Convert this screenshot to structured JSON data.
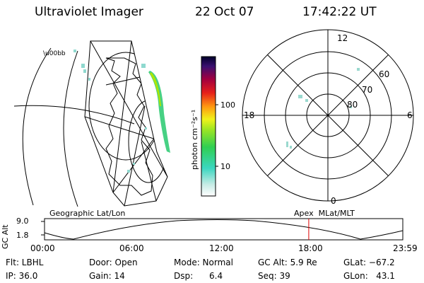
{
  "header": {
    "instrument": "Ultraviolet Imager",
    "date": "22 Oct 07",
    "time": "17:42:22 UT"
  },
  "colorbar": {
    "label": "photon cm⁻²s⁻¹",
    "ticks": [
      "100",
      "10"
    ]
  },
  "polar_plot": {
    "mlt_labels": {
      "top": "12",
      "left": "18",
      "right": "6",
      "bottom": "0"
    },
    "lat_labels": [
      "60",
      "70",
      "80"
    ]
  },
  "altitude_panel": {
    "left_title": "Geographic Lat/Lon",
    "right_title": "Apex  MLat/MLT",
    "axis_label": "GC Alt",
    "y_max": "9.0",
    "y_min": "1.8",
    "x_ticks": [
      "00:00",
      "06:00",
      "12:00",
      "18:00",
      "23:59"
    ],
    "current_time_marker": "17:42",
    "marker_color": "#e00000"
  },
  "status": {
    "flt": "Flt: LBHL",
    "ip": "IP: 36.0",
    "door": "Door: Open",
    "gain": "Gain: 14",
    "mode": "Mode: Normal",
    "dsp": "Dsp:      6.4",
    "gc_alt": "GC Alt: 5.9 Re",
    "seq": "Seq: 39",
    "glat": "GLat: −67.2",
    "glon": "GLon:   43.1"
  }
}
